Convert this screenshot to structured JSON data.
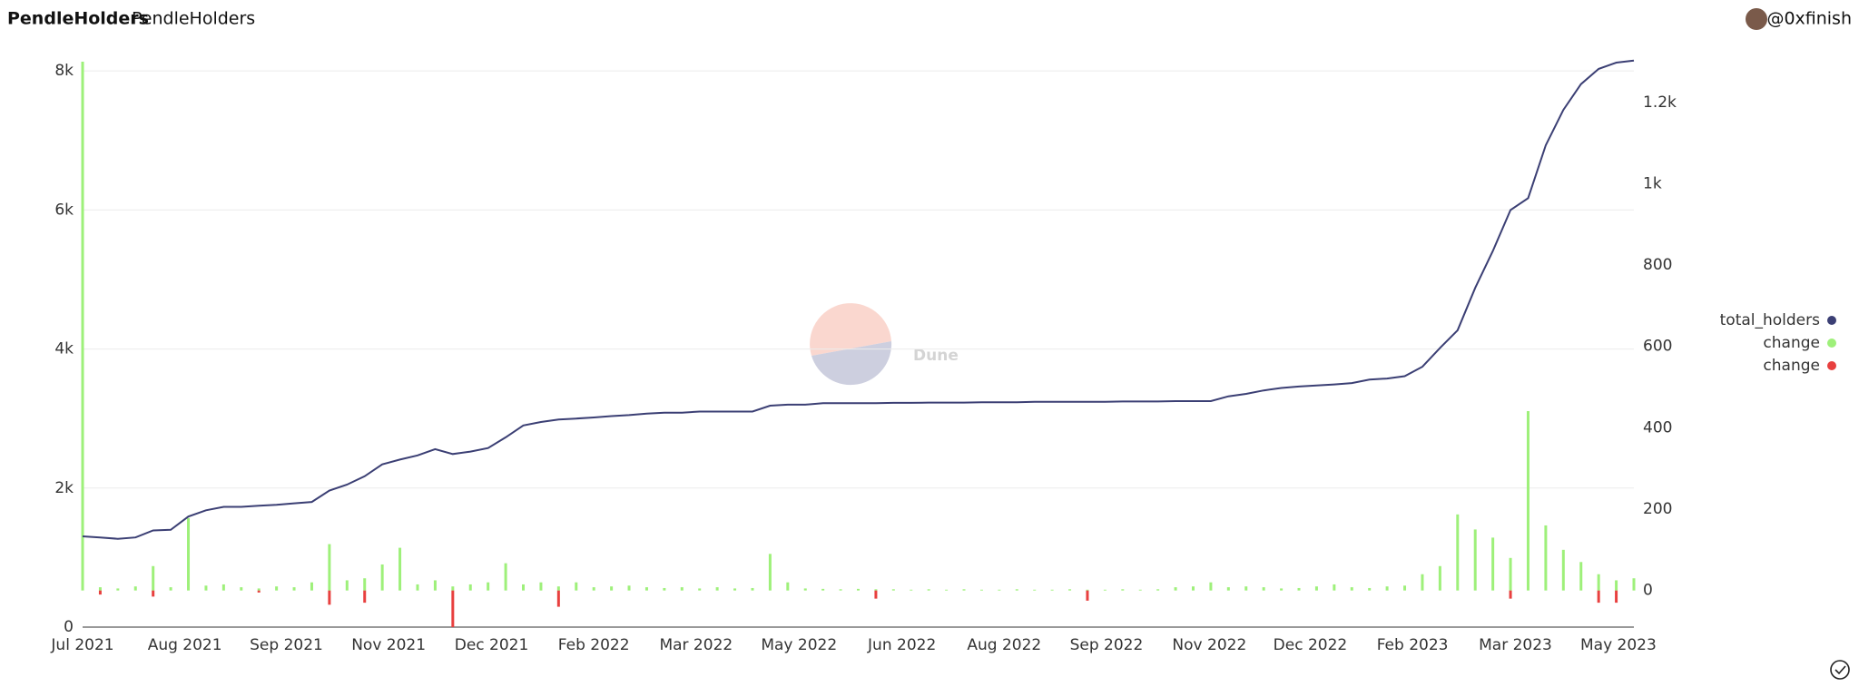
{
  "header": {
    "title": "PendleHolders",
    "subtitle": "PendleHolders",
    "author": "@0xfinish"
  },
  "watermark": "Dune",
  "chart_data": {
    "type": "combo",
    "x": [
      0,
      0.25,
      0.5,
      0.75,
      1,
      1.25,
      1.5,
      1.75,
      2,
      2.25,
      2.5,
      2.75,
      3,
      3.25,
      3.5,
      3.75,
      4,
      4.25,
      4.5,
      4.75,
      5,
      5.25,
      5.5,
      5.75,
      6,
      6.25,
      6.5,
      6.75,
      7,
      7.25,
      7.5,
      7.75,
      8,
      8.25,
      8.5,
      8.75,
      9,
      9.25,
      9.5,
      9.75,
      10,
      10.25,
      10.5,
      10.75,
      11,
      11.25,
      11.5,
      11.75,
      12,
      12.25,
      12.5,
      12.75,
      13,
      13.25,
      13.5,
      13.75,
      14,
      14.25,
      14.5,
      14.75,
      15,
      15.25,
      15.5,
      15.75,
      16,
      16.25,
      16.5,
      16.75,
      17,
      17.25,
      17.5,
      17.75,
      18,
      18.25,
      18.5,
      18.75,
      19,
      19.25,
      19.5,
      19.75,
      20,
      20.25,
      20.5,
      20.75,
      21,
      21.25,
      21.5,
      21.75,
      22
    ],
    "xlim": [
      0,
      22
    ],
    "xticks": [
      {
        "value": 0,
        "label": "Jul 2021"
      },
      {
        "value": 1.45,
        "label": "Aug 2021"
      },
      {
        "value": 2.89,
        "label": "Sep 2021"
      },
      {
        "value": 4.34,
        "label": "Nov 2021"
      },
      {
        "value": 5.8,
        "label": "Dec 2021"
      },
      {
        "value": 7.25,
        "label": "Feb 2022"
      },
      {
        "value": 8.7,
        "label": "Mar 2022"
      },
      {
        "value": 10.16,
        "label": "May 2022"
      },
      {
        "value": 11.62,
        "label": "Jun 2022"
      },
      {
        "value": 13.07,
        "label": "Aug 2022"
      },
      {
        "value": 14.52,
        "label": "Sep 2022"
      },
      {
        "value": 15.98,
        "label": "Nov 2022"
      },
      {
        "value": 17.41,
        "label": "Dec 2022"
      },
      {
        "value": 18.86,
        "label": "Feb 2023"
      },
      {
        "value": 20.32,
        "label": "Mar 2023"
      },
      {
        "value": 21.78,
        "label": "May 2023"
      }
    ],
    "ylim": [
      0,
      8250
    ],
    "yticks": [
      0,
      {
        "value": 2000,
        "label": "2k"
      },
      {
        "value": 4000,
        "label": "4k"
      },
      {
        "value": 6000,
        "label": "6k"
      },
      {
        "value": 8000,
        "label": "8k"
      }
    ],
    "y2lim": [
      -90,
      1320
    ],
    "y2ticks": [
      0,
      200,
      400,
      600,
      800,
      {
        "value": 1000,
        "label": "1k"
      },
      {
        "value": 1200,
        "label": "1.2k"
      }
    ],
    "grid": true,
    "legend": "right",
    "series": [
      {
        "name": "total_holders",
        "type": "line",
        "color": "#3b3f74",
        "values": [
          1305,
          1290,
          1270,
          1290,
          1390,
          1400,
          1590,
          1680,
          1730,
          1730,
          1745,
          1760,
          1780,
          1800,
          1965,
          2050,
          2170,
          2340,
          2410,
          2470,
          2560,
          2490,
          2525,
          2575,
          2730,
          2900,
          2950,
          2985,
          3000,
          3015,
          3035,
          3050,
          3070,
          3085,
          3085,
          3100,
          3100,
          3100,
          3100,
          3185,
          3200,
          3200,
          3220,
          3220,
          3220,
          3220,
          3225,
          3225,
          3230,
          3230,
          3230,
          3235,
          3235,
          3235,
          3240,
          3240,
          3240,
          3240,
          3240,
          3245,
          3245,
          3245,
          3250,
          3250,
          3250,
          3320,
          3355,
          3405,
          3440,
          3460,
          3475,
          3490,
          3510,
          3560,
          3575,
          3610,
          3745,
          4015,
          4270,
          4880,
          5410,
          6000,
          6170,
          6930,
          7440,
          7810,
          8030,
          8120,
          8150
        ]
      },
      {
        "name": "change",
        "type": "bar",
        "axis": "y2",
        "color": "#9ef07a",
        "values": [
          1300,
          8,
          5,
          10,
          60,
          8,
          178,
          12,
          15,
          8,
          5,
          10,
          8,
          20,
          114,
          25,
          30,
          64,
          105,
          15,
          25,
          10,
          15,
          20,
          67,
          15,
          20,
          10,
          20,
          8,
          10,
          12,
          8,
          6,
          8,
          5,
          8,
          5,
          6,
          90,
          20,
          5,
          4,
          3,
          4,
          3,
          3,
          2,
          3,
          2,
          3,
          2,
          2,
          3,
          2,
          2,
          3,
          2,
          2,
          3,
          2,
          3,
          8,
          10,
          20,
          8,
          10,
          8,
          5,
          6,
          10,
          15,
          8,
          6,
          10,
          12,
          40,
          60,
          187,
          150,
          130,
          80,
          441,
          160,
          100,
          70,
          40,
          25,
          30
        ]
      },
      {
        "name": "change",
        "type": "bar",
        "axis": "y2",
        "color": "#e8403f",
        "values": [
          null,
          -10,
          null,
          null,
          -15,
          null,
          null,
          null,
          null,
          null,
          -5,
          null,
          null,
          null,
          -35,
          null,
          -30,
          null,
          null,
          null,
          null,
          -90,
          null,
          null,
          null,
          null,
          null,
          -40,
          null,
          null,
          null,
          null,
          null,
          null,
          null,
          null,
          null,
          null,
          null,
          null,
          null,
          null,
          null,
          null,
          null,
          -20,
          null,
          null,
          null,
          null,
          null,
          null,
          null,
          null,
          null,
          null,
          null,
          -25,
          null,
          null,
          null,
          null,
          null,
          null,
          null,
          null,
          null,
          null,
          null,
          null,
          null,
          null,
          null,
          null,
          null,
          null,
          null,
          null,
          null,
          null,
          null,
          -20,
          null,
          null,
          null,
          null,
          -30,
          -30,
          null
        ]
      }
    ]
  }
}
